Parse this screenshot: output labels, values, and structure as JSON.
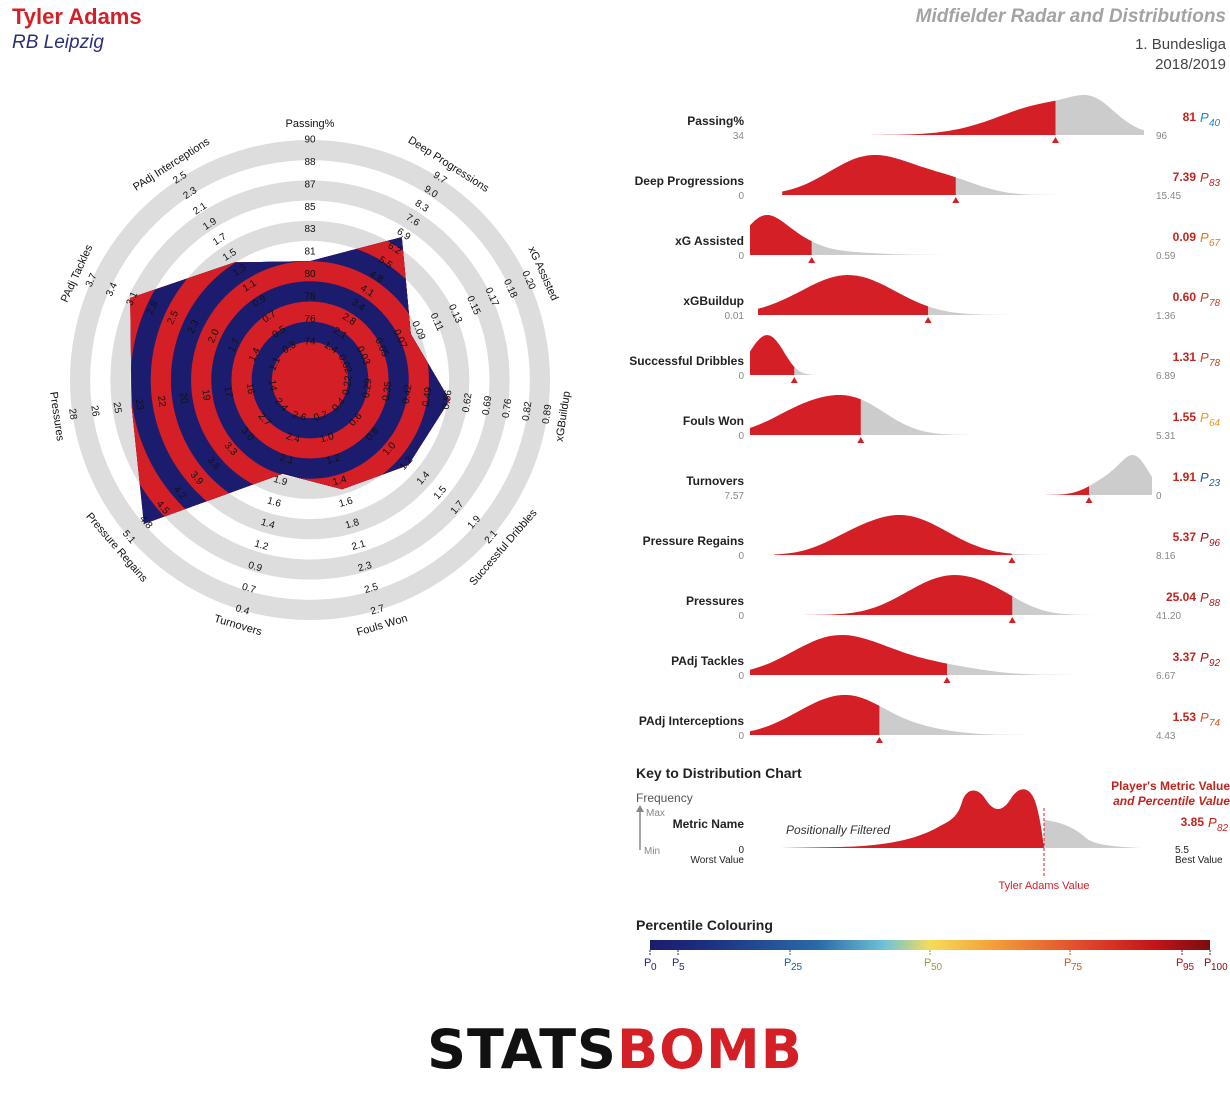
{
  "header": {
    "player_name": "Tyler Adams",
    "team_name": "RB Leipzig",
    "report_title": "Midfielder Radar and Distributions",
    "competition": "1. Bundesliga",
    "season": "2018/2019"
  },
  "colors": {
    "player_red": "#d41f26",
    "team_navy": "#1c1c6e",
    "ring_grey": "#dddddd",
    "dist_grey": "#cccccc"
  },
  "chart_data": [
    {
      "type": "radar",
      "axes": [
        {
          "label": "Passing%",
          "ticks": [
            "74",
            "76",
            "78",
            "80",
            "81",
            "83",
            "85",
            "87",
            "88",
            "90"
          ],
          "value": 81
        },
        {
          "label": "Deep Progressions",
          "ticks": [
            "1.4",
            "2.1",
            "2.8",
            "3.4",
            "4.1",
            "4.8",
            "5.5",
            "6.2",
            "6.9",
            "7.6",
            "8.3",
            "9.0",
            "9.7"
          ],
          "value": 7.39
        },
        {
          "label": "xG Assisted",
          "ticks": [
            "0.02",
            "0.03",
            "0.05",
            "0.07",
            "0.09",
            "0.11",
            "0.13",
            "0.15",
            "0.17",
            "0.18",
            "0.20"
          ],
          "value": 0.09
        },
        {
          "label": "xGBuildup",
          "ticks": [
            "0.22",
            "0.29",
            "0.35",
            "0.42",
            "0.49",
            "0.56",
            "0.62",
            "0.69",
            "0.76",
            "0.82",
            "0.89"
          ],
          "value": 0.6
        },
        {
          "label": "Successful Dribbles",
          "ticks": [
            "0.4",
            "0.6",
            "0.8",
            "1.0",
            "1.2",
            "1.4",
            "1.5",
            "1.7",
            "1.9",
            "2.1"
          ],
          "value": 1.31
        },
        {
          "label": "Fouls Won",
          "ticks": [
            "0.7",
            "1.0",
            "1.2",
            "1.4",
            "1.6",
            "1.8",
            "2.1",
            "2.3",
            "2.5",
            "2.7"
          ],
          "value": 1.55
        },
        {
          "label": "Turnovers",
          "ticks": [
            "2.6",
            "2.4",
            "2.1",
            "1.9",
            "1.6",
            "1.4",
            "1.2",
            "0.9",
            "0.7",
            "0.4"
          ],
          "value": 1.91
        },
        {
          "label": "Pressure Regains",
          "ticks": [
            "2.4",
            "2.7",
            "3.0",
            "3.3",
            "3.6",
            "3.9",
            "4.2",
            "4.5",
            "4.8",
            "5.1"
          ],
          "value": 5.37
        },
        {
          "label": "Pressures",
          "ticks": [
            "14",
            "16",
            "17",
            "19",
            "20",
            "22",
            "23",
            "25",
            "26",
            "28"
          ],
          "value": 25.04
        },
        {
          "label": "PAdj Tackles",
          "ticks": [
            "1.1",
            "1.4",
            "1.7",
            "2.0",
            "2.3",
            "2.5",
            "2.8",
            "3.1",
            "3.4",
            "3.7"
          ],
          "value": 3.37
        },
        {
          "label": "PAdj Interceptions",
          "ticks": [
            "0.3",
            "0.5",
            "0.7",
            "0.9",
            "1.1",
            "1.3",
            "1.5",
            "1.7",
            "1.9",
            "2.1",
            "2.3",
            "2.5"
          ],
          "value": 1.53
        }
      ]
    },
    {
      "type": "area",
      "metrics": [
        {
          "label": "Passing%",
          "worst": "34",
          "best": "96",
          "value": "81",
          "percentile": "40",
          "pcolor": "#1e88c8"
        },
        {
          "label": "Deep Progressions",
          "worst": "0",
          "best": "15.45",
          "value": "7.39",
          "percentile": "83",
          "pcolor": "#c4231d"
        },
        {
          "label": "xG Assisted",
          "worst": "0",
          "best": "0.59",
          "value": "0.09",
          "percentile": "67",
          "pcolor": "#e07a1f"
        },
        {
          "label": "xGBuildup",
          "worst": "0.01",
          "best": "1.36",
          "value": "0.60",
          "percentile": "78",
          "pcolor": "#c4431c"
        },
        {
          "label": "Successful Dribbles",
          "worst": "0",
          "best": "6.89",
          "value": "1.31",
          "percentile": "78",
          "pcolor": "#c4431c"
        },
        {
          "label": "Fouls Won",
          "worst": "0",
          "best": "5.31",
          "value": "1.55",
          "percentile": "64",
          "pcolor": "#e89a1c"
        },
        {
          "label": "Turnovers",
          "worst": "7.57",
          "best": "0",
          "value": "1.91",
          "percentile": "23",
          "pcolor": "#1c5c9a"
        },
        {
          "label": "Pressure Regains",
          "worst": "0",
          "best": "8.16",
          "value": "5.37",
          "percentile": "96",
          "pcolor": "#a3141a"
        },
        {
          "label": "Pressures",
          "worst": "0",
          "best": "41.20",
          "value": "25.04",
          "percentile": "88",
          "pcolor": "#b81c1c"
        },
        {
          "label": "PAdj Tackles",
          "worst": "0",
          "best": "6.67",
          "value": "3.37",
          "percentile": "92",
          "pcolor": "#ad1619"
        },
        {
          "label": "PAdj Interceptions",
          "worst": "0",
          "best": "4.43",
          "value": "1.53",
          "percentile": "74",
          "pcolor": "#cf561c"
        }
      ]
    }
  ],
  "key": {
    "title": "Key to Distribution Chart",
    "frequency": "Frequency",
    "max": "Max",
    "min": "Min",
    "metric_name": "Metric Name",
    "worst_num": "0",
    "worst_label": "Worst Value",
    "filtered": "Positionally Filtered",
    "value_label": "Tyler Adams Value",
    "player_metric_1": "Player's Metric Value",
    "player_metric_2": "and Percentile Value",
    "example_value": "3.85",
    "example_percentile": "82",
    "best_num": "5.5",
    "best_label": "Best Value"
  },
  "scale": {
    "title": "Percentile Colouring",
    "ticks": [
      {
        "label": "0",
        "color": "#1c1c6e"
      },
      {
        "label": "5",
        "color": "#1c2c7e"
      },
      {
        "label": "25",
        "color": "#1c5c9a"
      },
      {
        "label": "50",
        "color": "#9a9a3a"
      },
      {
        "label": "75",
        "color": "#c45a1c"
      },
      {
        "label": "95",
        "color": "#a3141a"
      },
      {
        "label": "100",
        "color": "#7a0d0d"
      }
    ]
  },
  "logo": {
    "part1": "STATS",
    "part2": "BOMB"
  }
}
